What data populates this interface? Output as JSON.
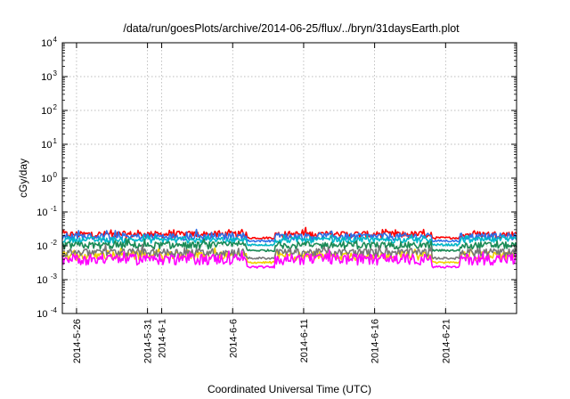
{
  "chart_data": {
    "type": "line",
    "title": "/data/run/goesPlots/archive/2014-06-25/flux/../bryn/31daysEarth.plot",
    "xlabel": "Coordinated Universal Time (UTC)",
    "ylabel": "cGy/day",
    "x_range": [
      "2014-05-25",
      "2014-06-26"
    ],
    "x_ticks": [
      "2014-5-26",
      "2014-5-31",
      "2014-6-1",
      "2014-6-6",
      "2014-6-11",
      "2014-6-16",
      "2014-6-21"
    ],
    "y_scale": "log",
    "ylim": [
      0.0001,
      10000
    ],
    "y_ticks": [
      {
        "base": "10",
        "exp": "4",
        "value": 10000
      },
      {
        "base": "10",
        "exp": "3",
        "value": 1000
      },
      {
        "base": "10",
        "exp": "2",
        "value": 100
      },
      {
        "base": "10",
        "exp": "1",
        "value": 10
      },
      {
        "base": "10",
        "exp": "0",
        "value": 1
      },
      {
        "base": "10",
        "exp": "-1",
        "value": 0.1
      },
      {
        "base": "10",
        "exp": "-2",
        "value": 0.01
      },
      {
        "base": "10",
        "exp": "-3",
        "value": 0.001
      },
      {
        "base": "10",
        "exp": "-4",
        "value": 0.0001
      }
    ],
    "grid": true,
    "legend": "none",
    "series": [
      {
        "color": "#ff0000",
        "baseline": 0.022,
        "spread": 0.01,
        "dip_floor": 0.016
      },
      {
        "color": "#2e6fe6",
        "baseline": 0.019,
        "spread": 0.009,
        "dip_floor": 0.013
      },
      {
        "color": "#00b7c7",
        "baseline": 0.015,
        "spread": 0.006,
        "dip_floor": 0.01
      },
      {
        "color": "#1a8a55",
        "baseline": 0.0105,
        "spread": 0.005,
        "dip_floor": 0.0068
      },
      {
        "color": "#f0d000",
        "baseline": 0.0052,
        "spread": 0.003,
        "dip_floor": 0.003
      },
      {
        "color": "#777777",
        "baseline": 0.0065,
        "spread": 0.0035,
        "dip_floor": 0.004
      },
      {
        "color": "#ff00ff",
        "baseline": 0.0042,
        "spread": 0.003,
        "dip_floor": 0.0022
      }
    ],
    "quiet_periods": [
      {
        "start": "2014-06-07",
        "end": "2014-06-09"
      },
      {
        "start": "2014-06-20",
        "end": "2014-06-22"
      }
    ]
  }
}
